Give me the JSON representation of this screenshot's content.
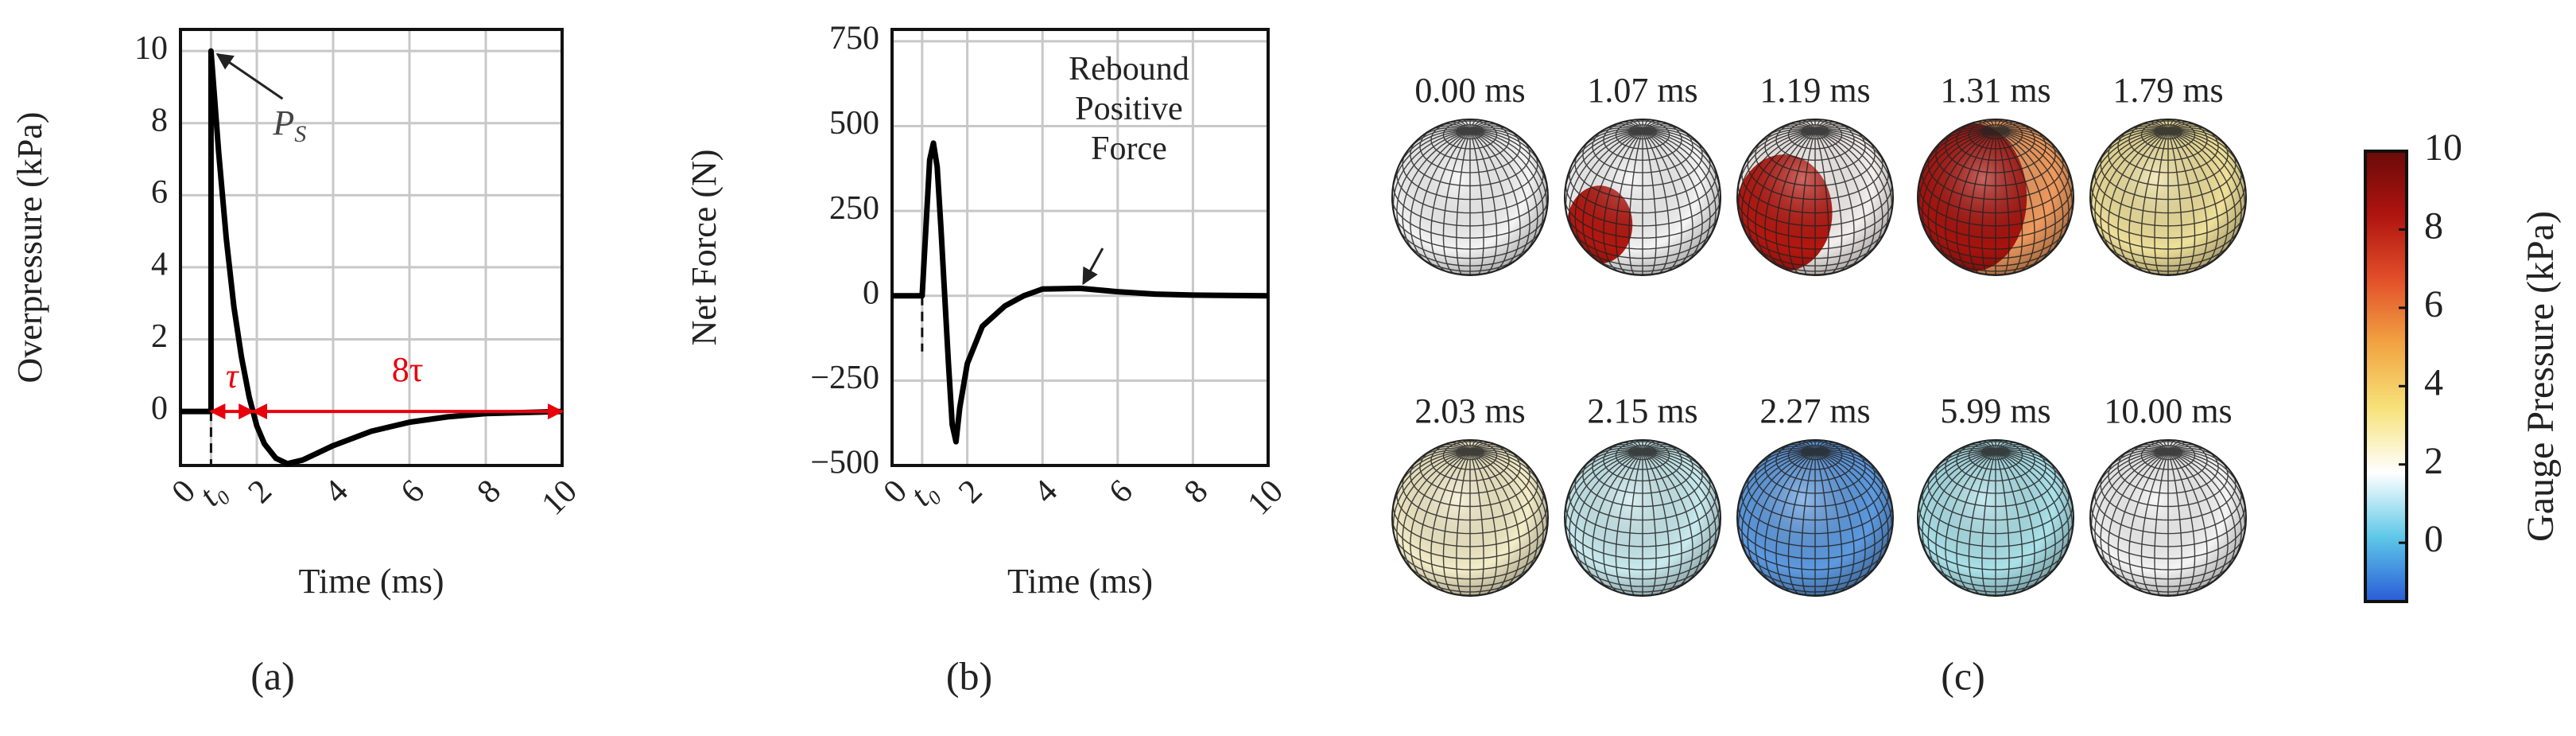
{
  "chart_data": [
    {
      "type": "line",
      "panel_label": "(a)",
      "xlabel": "Time (ms)",
      "ylabel": "Overpressure (kPa)",
      "x": [
        0,
        0.8,
        0.8,
        1.0,
        1.2,
        1.4,
        1.6,
        1.8,
        2.0,
        2.2,
        2.5,
        2.8,
        3.2,
        3.6,
        4,
        5,
        6,
        7,
        8,
        10
      ],
      "series": [
        {
          "color": "#000000",
          "values": [
            0,
            0,
            10,
            7.2,
            4.8,
            2.9,
            1.5,
            0.4,
            -0.4,
            -0.9,
            -1.3,
            -1.45,
            -1.35,
            -1.15,
            -0.95,
            -0.55,
            -0.3,
            -0.15,
            -0.06,
            0
          ]
        }
      ],
      "xlim": [
        0,
        10
      ],
      "ylim": [
        -1.5,
        10.6
      ],
      "xticks": [
        0,
        {
          "value": 0.8,
          "label": "t₀"
        },
        2,
        4,
        6,
        8,
        10
      ],
      "yticks": [
        0,
        2,
        4,
        6,
        8,
        10
      ],
      "grid": true,
      "peak_label": "P",
      "peak_label_sub": "S",
      "tau_label": "τ",
      "tail_label": "8τ",
      "annotation_color": "#e8000b"
    },
    {
      "type": "line",
      "panel_label": "(b)",
      "xlabel": "Time (ms)",
      "ylabel": "Net Force (N)",
      "x": [
        0,
        0.8,
        0.9,
        1.0,
        1.1,
        1.2,
        1.3,
        1.4,
        1.5,
        1.6,
        1.7,
        1.8,
        2.0,
        2.4,
        3,
        3.5,
        4,
        5,
        6,
        7,
        8,
        10
      ],
      "series": [
        {
          "color": "#000000",
          "values": [
            0,
            0,
            200,
            400,
            450,
            380,
            200,
            0,
            -200,
            -380,
            -430,
            -330,
            -200,
            -90,
            -30,
            0,
            20,
            22,
            12,
            5,
            2,
            0
          ]
        }
      ],
      "xlim": [
        0,
        10
      ],
      "ylim": [
        -500,
        785
      ],
      "xticks": [
        0,
        {
          "value": 0.8,
          "label": "t₀"
        },
        2,
        4,
        6,
        8,
        10
      ],
      "yticks": [
        {
          "value": -500,
          "label": "−500"
        },
        {
          "value": -250,
          "label": "−250"
        },
        0,
        250,
        500,
        750
      ],
      "grid": true,
      "annotation_lines": [
        "Rebound",
        "Positive",
        "Force"
      ]
    },
    {
      "type": "spheres",
      "panel_label": "(c)",
      "panels": [
        {
          "label": "0.00 ms",
          "color": "#f4f4f4"
        },
        {
          "label": "1.07 ms",
          "color": "#f4f4f4",
          "patch_color": "#b5170f"
        },
        {
          "label": "1.19 ms",
          "color": "#f3efec",
          "patch_color": "#b5170f"
        },
        {
          "label": "1.31 ms",
          "color": "#ef9a5e",
          "patch_color": "#a8130d"
        },
        {
          "label": "1.79 ms",
          "color": "#efe09a"
        },
        {
          "label": "2.03 ms",
          "color": "#f4edc8"
        },
        {
          "label": "2.15 ms",
          "color": "#c9ebef"
        },
        {
          "label": "2.27 ms",
          "color": "#5d9ae0"
        },
        {
          "label": "5.99 ms",
          "color": "#abe2ea"
        },
        {
          "label": "10.00 ms",
          "color": "#f4f4f4"
        }
      ],
      "colorbar": {
        "label": "Gauge Pressure (kPa)",
        "lim": [
          -1.5,
          10
        ],
        "ticks": [
          0,
          2,
          4,
          6,
          8,
          10
        ],
        "colors": [
          "#2a5bd7",
          "#5ec8e8",
          "#ffffff",
          "#f7e27a",
          "#f2a443",
          "#e2502a",
          "#b0140f",
          "#6a0a08"
        ]
      }
    }
  ]
}
